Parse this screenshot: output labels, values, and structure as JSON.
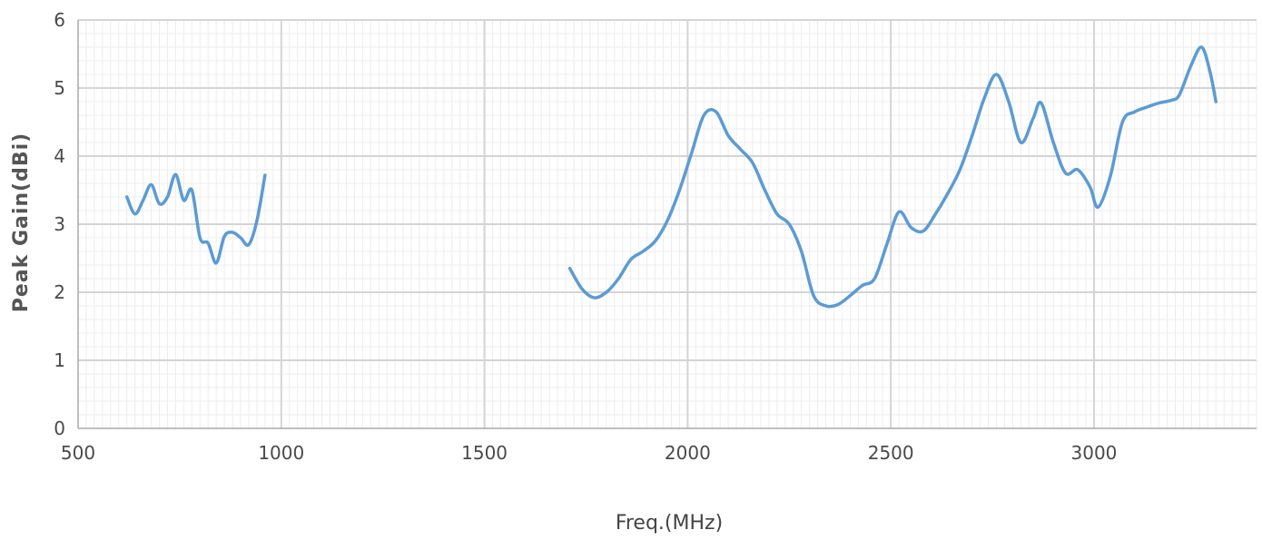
{
  "chart_data": {
    "type": "line",
    "title": "",
    "xlabel": "Freq.(MHz)",
    "ylabel": "Peak Gain(dBi)",
    "xlim": [
      500,
      3400
    ],
    "ylim": [
      0,
      6
    ],
    "x_ticks": [
      500,
      1000,
      1500,
      2000,
      2500,
      3000
    ],
    "x_tick_labels": [
      "500",
      "1000",
      "1500",
      "2000",
      "2500",
      "3000"
    ],
    "y_ticks": [
      0,
      1,
      2,
      3,
      4,
      5,
      6
    ],
    "y_tick_labels": [
      "0",
      "1",
      "2",
      "3",
      "4",
      "5",
      "6"
    ],
    "x_minor_step": 20,
    "y_minor_step": 0.2,
    "grid": true,
    "legend": "none",
    "series": [
      {
        "x": [
          620,
          640,
          660,
          680,
          700,
          720,
          740,
          760,
          780,
          800,
          820,
          840,
          860,
          880,
          900,
          920,
          940,
          960
        ],
        "y": [
          3.4,
          3.15,
          3.35,
          3.58,
          3.3,
          3.4,
          3.73,
          3.35,
          3.5,
          2.8,
          2.72,
          2.43,
          2.82,
          2.88,
          2.8,
          2.7,
          3.05,
          3.72
        ]
      },
      {
        "x": [
          1710,
          1740,
          1770,
          1800,
          1830,
          1860,
          1890,
          1920,
          1950,
          1980,
          2010,
          2040,
          2070,
          2100,
          2130,
          2160,
          2190,
          2220,
          2250,
          2280,
          2310,
          2340,
          2370,
          2400,
          2430,
          2460,
          2490,
          2520,
          2550,
          2580,
          2610,
          2640,
          2670,
          2700,
          2730,
          2760,
          2790,
          2820,
          2850,
          2870,
          2900,
          2930,
          2960,
          2990,
          3010,
          3040,
          3070,
          3100,
          3130,
          3160,
          3190,
          3210,
          3240,
          3265,
          3285,
          3300
        ],
        "y": [
          2.35,
          2.05,
          1.92,
          2.0,
          2.2,
          2.48,
          2.6,
          2.75,
          3.05,
          3.5,
          4.05,
          4.6,
          4.65,
          4.3,
          4.1,
          3.9,
          3.5,
          3.15,
          3.0,
          2.6,
          1.95,
          1.8,
          1.82,
          1.95,
          2.1,
          2.2,
          2.7,
          3.18,
          2.95,
          2.9,
          3.15,
          3.45,
          3.8,
          4.3,
          4.85,
          5.2,
          4.8,
          4.2,
          4.55,
          4.78,
          4.2,
          3.75,
          3.8,
          3.55,
          3.25,
          3.7,
          4.5,
          4.65,
          4.72,
          4.78,
          4.82,
          4.9,
          5.35,
          5.6,
          5.25,
          4.8
        ]
      }
    ],
    "colors": {
      "line": "#5b9bd5",
      "major_grid": "#d4d4d4",
      "minor_grid": "#ededed",
      "axis": "#aaaaaa"
    }
  }
}
